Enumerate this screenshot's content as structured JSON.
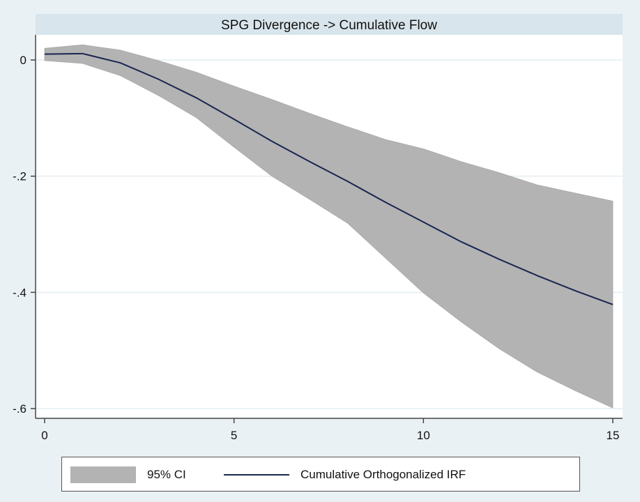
{
  "chart_data": {
    "type": "line",
    "title": "SPG Divergence -> Cumulative Flow",
    "xlabel": "",
    "ylabel": "",
    "x": [
      0,
      1,
      2,
      3,
      4,
      5,
      6,
      7,
      8,
      9,
      10,
      11,
      12,
      13,
      14,
      15
    ],
    "xlim": [
      0,
      15
    ],
    "ylim": [
      -0.6,
      0.0
    ],
    "xticks": [
      0,
      5,
      10,
      15
    ],
    "xtick_labels": [
      "0",
      "5",
      "10",
      "15"
    ],
    "yticks": [
      0,
      -0.2,
      -0.4,
      -0.6
    ],
    "ytick_labels": [
      "0",
      "-.2",
      "-.4",
      "-.6"
    ],
    "grid": true,
    "series": [
      {
        "name": "Cumulative Orthogonalized IRF",
        "values": [
          0.01,
          0.011,
          -0.005,
          -0.033,
          -0.065,
          -0.102,
          -0.14,
          -0.175,
          -0.209,
          -0.245,
          -0.279,
          -0.313,
          -0.343,
          -0.371,
          -0.397,
          -0.421
        ]
      },
      {
        "name": "95% CI upper",
        "values": [
          0.02,
          0.026,
          0.017,
          -0.001,
          -0.021,
          -0.045,
          -0.068,
          -0.092,
          -0.115,
          -0.137,
          -0.153,
          -0.175,
          -0.194,
          -0.215,
          -0.229,
          -0.243
        ]
      },
      {
        "name": "95% CI lower",
        "values": [
          -0.001,
          -0.006,
          -0.027,
          -0.061,
          -0.099,
          -0.15,
          -0.2,
          -0.24,
          -0.281,
          -0.341,
          -0.401,
          -0.451,
          -0.497,
          -0.537,
          -0.569,
          -0.599
        ]
      }
    ],
    "legend": {
      "placement": "bottom",
      "entries": [
        "95% CI",
        "Cumulative Orthogonalized IRF"
      ]
    },
    "colors": {
      "ci": "#b3b3b3",
      "line": "#1a2550",
      "title_band": "#d9e5ec",
      "background": "#eaf1f4",
      "grid": "#e4eef2"
    }
  }
}
